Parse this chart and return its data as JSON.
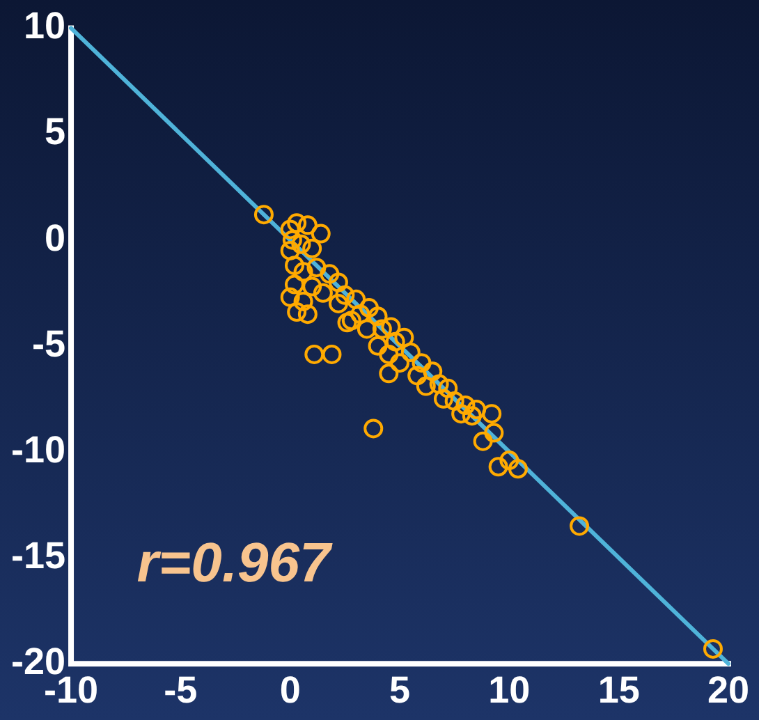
{
  "chart_data": {
    "type": "scatter",
    "xlim": [
      -10,
      20
    ],
    "ylim": [
      -20,
      10
    ],
    "xticks": [
      -10,
      -5,
      0,
      5,
      10,
      15,
      20
    ],
    "yticks": [
      -20,
      -15,
      -10,
      -5,
      0,
      5,
      10
    ],
    "annotations": [
      "r=0.967"
    ],
    "series": [
      {
        "type": "line",
        "marker": "none",
        "color": "#4fb3d9",
        "x": [
          -10,
          20
        ],
        "values": [
          10,
          -20
        ]
      },
      {
        "type": "scatter",
        "marker": "circle",
        "color": "#ffaa00",
        "x": [
          -1.2,
          3.8,
          1.1,
          1.9,
          13.2,
          19.3,
          9.5,
          10.0,
          10.4,
          9.2,
          8.8,
          9.3,
          4.5,
          0.3,
          0.8,
          0,
          0.2,
          0,
          0.3,
          0.8,
          0.1,
          0.5,
          1,
          1.4,
          0,
          0.2,
          0.6,
          1.2,
          1.8,
          2.2,
          1.0,
          1.5,
          2.5,
          3,
          2.2,
          3.2,
          3.6,
          4,
          2.8,
          3.5,
          4.2,
          4.6,
          2.6,
          4,
          4.8,
          5.2,
          4.5,
          5.5,
          5,
          6,
          5.8,
          6.5,
          6.8,
          6.2,
          7.2,
          7.5,
          7,
          8,
          8.3,
          7.8,
          8.5,
          0.6
        ],
        "values": [
          1.2,
          -8.9,
          -5.4,
          -5.4,
          -13.5,
          -19.3,
          -10.7,
          -10.4,
          -10.8,
          -8.2,
          -9.5,
          -9.1,
          -6.3,
          -3.4,
          -3.5,
          -2.7,
          -2.1,
          0.5,
          0.8,
          0.7,
          0,
          -0.2,
          -0.4,
          0.3,
          -0.5,
          -1.2,
          -1.5,
          -1.3,
          -1.6,
          -2,
          -2.2,
          -2.5,
          -2.6,
          -2.8,
          -3,
          -3.5,
          -3.2,
          -3.6,
          -3.8,
          -4.2,
          -4.2,
          -4.1,
          -3.9,
          -5,
          -4.8,
          -4.6,
          -5.4,
          -5.3,
          -5.8,
          -5.8,
          -6.4,
          -6.2,
          -6.8,
          -6.9,
          -7,
          -7.6,
          -7.5,
          -7.8,
          -8.3,
          -8.2,
          -8,
          -2.9
        ]
      }
    ]
  }
}
